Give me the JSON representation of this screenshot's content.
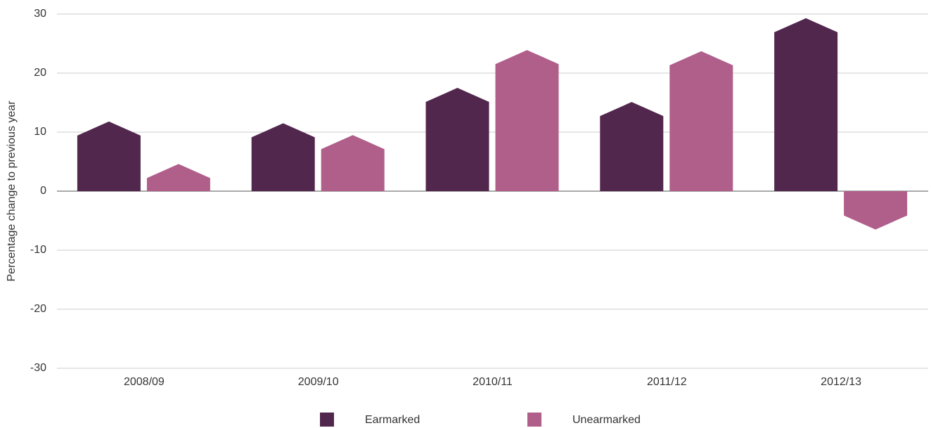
{
  "chart_data": {
    "type": "bar",
    "y_label": "Percentage change to previous year",
    "categories": [
      "2008/09",
      "2009/10",
      "2010/11",
      "2011/12",
      "2012/13"
    ],
    "series": [
      {
        "name": "Earmarked",
        "color": "#52274e",
        "values": [
          11.8,
          11.5,
          17.5,
          15.1,
          29.3
        ]
      },
      {
        "name": "Unearmarked",
        "color": "#b05e8a",
        "values": [
          4.6,
          9.5,
          23.9,
          23.7,
          -6.5
        ]
      }
    ],
    "ylim": [
      -30,
      30
    ],
    "yticks": [
      -30,
      -20,
      -10,
      0,
      10,
      20,
      30
    ],
    "grid": true,
    "legend": "bottom"
  }
}
